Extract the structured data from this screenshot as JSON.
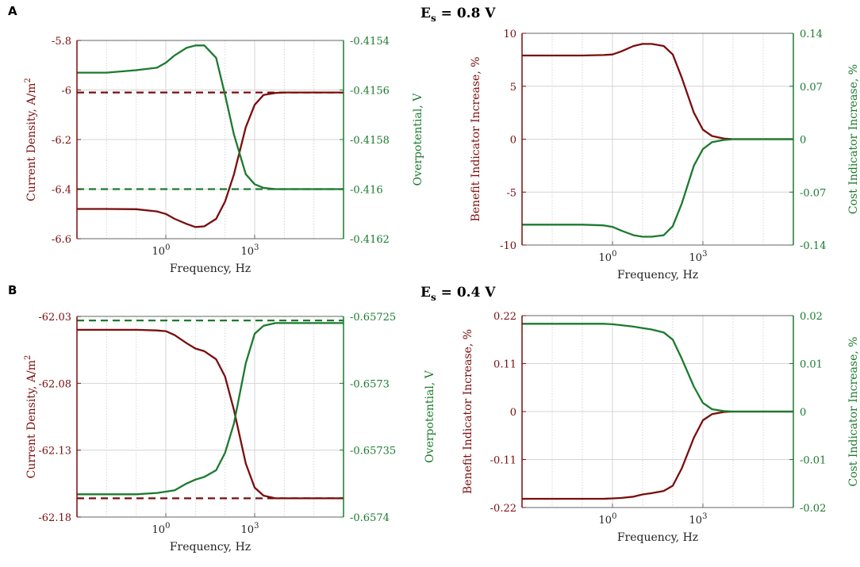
{
  "panels": [
    {
      "letter": "A",
      "title_main": "E",
      "title_sub": "s",
      "title_rest": " = 0.8 V"
    },
    {
      "letter": "B",
      "title_main": "E",
      "title_sub": "s",
      "title_rest": " = 0.4 V"
    }
  ],
  "colors": {
    "red": "#7a0d0d",
    "green": "#1b7a2e",
    "grid": "#d4d4d4",
    "frame": "#666666"
  },
  "chart_data": [
    {
      "type": "line",
      "panel": "A",
      "xlabel": "Frequency, Hz",
      "x_scale": "log",
      "xlim": [
        0.001,
        1000000
      ],
      "x_ticks": [
        {
          "value": 1,
          "base": "10",
          "exp": "0"
        },
        {
          "value": 1000,
          "base": "10",
          "exp": "3"
        }
      ],
      "ylabel_left": "Current Density, A/m",
      "ylabel_left_sup": "2",
      "ylim_left": [
        -6.6,
        -5.8
      ],
      "yticks_left": [
        "-5.8",
        "-6",
        "-6.2",
        "-6.4",
        "-6.6"
      ],
      "ylabel_right": "Overpotential, V",
      "ylim_right": [
        -0.4162,
        -0.4154
      ],
      "yticks_right": [
        "-0.4154",
        "-0.4156",
        "-0.4158",
        "-0.416",
        "-0.4162"
      ],
      "series": [
        {
          "axis": "left",
          "style": "solid",
          "color": "red",
          "x": [
            0.001,
            0.01,
            0.1,
            0.5,
            1,
            2,
            5,
            10,
            20,
            50,
            100,
            200,
            500,
            1000,
            2000,
            5000,
            10000,
            100000,
            1000000
          ],
          "y": [
            -6.48,
            -6.48,
            -6.481,
            -6.49,
            -6.5,
            -6.52,
            -6.54,
            -6.553,
            -6.55,
            -6.52,
            -6.45,
            -6.34,
            -6.15,
            -6.06,
            -6.02,
            -6.012,
            -6.01,
            -6.01,
            -6.01
          ]
        },
        {
          "axis": "left",
          "style": "dashed",
          "color": "red",
          "x": [
            0.001,
            1000000
          ],
          "y": [
            -6.01,
            -6.01
          ]
        },
        {
          "axis": "right",
          "style": "solid",
          "color": "green",
          "x": [
            0.001,
            0.01,
            0.1,
            0.5,
            1,
            2,
            5,
            10,
            20,
            50,
            100,
            200,
            500,
            1000,
            2000,
            5000,
            10000,
            100000,
            1000000
          ],
          "y": [
            -0.41553,
            -0.41553,
            -0.41552,
            -0.41551,
            -0.41549,
            -0.41546,
            -0.41543,
            -0.41542,
            -0.41542,
            -0.41547,
            -0.41562,
            -0.41578,
            -0.41594,
            -0.41598,
            -0.415995,
            -0.416,
            -0.416,
            -0.416,
            -0.416
          ]
        },
        {
          "axis": "right",
          "style": "dashed",
          "color": "green",
          "x": [
            0.001,
            1000000
          ],
          "y": [
            -0.416,
            -0.416
          ]
        }
      ]
    },
    {
      "type": "line",
      "panel": "A",
      "xlabel": "Frequency, Hz",
      "x_scale": "log",
      "xlim": [
        0.001,
        1000000
      ],
      "x_ticks": [
        {
          "value": 1,
          "base": "10",
          "exp": "0"
        },
        {
          "value": 1000,
          "base": "10",
          "exp": "3"
        }
      ],
      "ylabel_left": "Benefit Indicator Increase, %",
      "ylim_left": [
        -10,
        10
      ],
      "yticks_left": [
        "10",
        "5",
        "0",
        "-5",
        "-10"
      ],
      "ylabel_right": "Cost Indicator Increase, %",
      "ylim_right": [
        -0.14,
        0.14
      ],
      "yticks_right": [
        "0.14",
        "0.07",
        "0",
        "-0.07",
        "-0.14"
      ],
      "series": [
        {
          "axis": "left",
          "style": "solid",
          "color": "red",
          "x": [
            0.001,
            0.01,
            0.1,
            0.5,
            1,
            2,
            5,
            10,
            20,
            50,
            100,
            200,
            500,
            1000,
            2000,
            5000,
            10000,
            100000,
            1000000
          ],
          "y": [
            7.9,
            7.9,
            7.9,
            7.95,
            8.0,
            8.3,
            8.8,
            9.0,
            9.0,
            8.8,
            8.0,
            5.8,
            2.5,
            0.9,
            0.3,
            0.05,
            0,
            0,
            0
          ]
        },
        {
          "axis": "right",
          "style": "solid",
          "color": "green",
          "x": [
            0.001,
            0.01,
            0.1,
            0.5,
            1,
            2,
            5,
            10,
            20,
            50,
            100,
            200,
            500,
            1000,
            2000,
            5000,
            10000,
            100000,
            1000000
          ],
          "y": [
            -0.113,
            -0.113,
            -0.113,
            -0.114,
            -0.116,
            -0.121,
            -0.127,
            -0.129,
            -0.129,
            -0.127,
            -0.115,
            -0.085,
            -0.035,
            -0.013,
            -0.004,
            -0.001,
            0,
            0,
            0
          ]
        }
      ]
    },
    {
      "type": "line",
      "panel": "B",
      "xlabel": "Frequency, Hz",
      "x_scale": "log",
      "xlim": [
        0.001,
        1000000
      ],
      "x_ticks": [
        {
          "value": 1,
          "base": "10",
          "exp": "0"
        },
        {
          "value": 1000,
          "base": "10",
          "exp": "3"
        }
      ],
      "ylabel_left": "Current Density, A/m",
      "ylabel_left_sup": "2",
      "ylim_left": [
        -62.18,
        -62.03
      ],
      "yticks_left": [
        "-62.03",
        "-62.08",
        "-62.13",
        "-62.18"
      ],
      "ylabel_right": "Overpotential, V",
      "ylim_right": [
        -0.6574,
        -0.65725
      ],
      "yticks_right": [
        "-0.65725",
        "-0.6573",
        "-0.65735",
        "-0.6574"
      ],
      "series": [
        {
          "axis": "left",
          "style": "solid",
          "color": "red",
          "x": [
            0.001,
            0.01,
            0.1,
            0.5,
            1,
            2,
            5,
            10,
            20,
            50,
            100,
            200,
            500,
            1000,
            2000,
            5000,
            10000,
            100000,
            1000000
          ],
          "y": [
            -62.04,
            -62.04,
            -62.04,
            -62.0405,
            -62.041,
            -62.044,
            -62.05,
            -62.054,
            -62.056,
            -62.062,
            -62.075,
            -62.1,
            -62.14,
            -62.158,
            -62.164,
            -62.166,
            -62.166,
            -62.166,
            -62.166
          ]
        },
        {
          "axis": "left",
          "style": "dashed",
          "color": "red",
          "x": [
            0.001,
            1000000
          ],
          "y": [
            -62.166,
            -62.166
          ]
        },
        {
          "axis": "right",
          "style": "solid",
          "color": "green",
          "x": [
            0.001,
            0.01,
            0.1,
            0.5,
            1,
            2,
            5,
            10,
            20,
            50,
            100,
            200,
            500,
            1000,
            2000,
            5000,
            10000,
            100000,
            1000000
          ],
          "y": [
            -0.657383,
            -0.657383,
            -0.657383,
            -0.657382,
            -0.657381,
            -0.65738,
            -0.657375,
            -0.657372,
            -0.65737,
            -0.657365,
            -0.657352,
            -0.65733,
            -0.657285,
            -0.657263,
            -0.657257,
            -0.657255,
            -0.657255,
            -0.657255,
            -0.657255
          ]
        },
        {
          "axis": "right",
          "style": "dashed",
          "color": "green",
          "x": [
            0.001,
            1000000
          ],
          "y": [
            -0.657253,
            -0.657253
          ]
        }
      ]
    },
    {
      "type": "line",
      "panel": "B",
      "xlabel": "Frequency, Hz",
      "x_scale": "log",
      "xlim": [
        0.001,
        1000000
      ],
      "x_ticks": [
        {
          "value": 1,
          "base": "10",
          "exp": "0"
        },
        {
          "value": 1000,
          "base": "10",
          "exp": "3"
        }
      ],
      "ylabel_left": "Benefit Indicator Increase, %",
      "ylim_left": [
        -0.22,
        0.22
      ],
      "yticks_left": [
        "0.22",
        "0.11",
        "0",
        "-0.11",
        "-0.22"
      ],
      "ylabel_right": "Cost Indicator Increase, %",
      "ylim_right": [
        -0.02,
        0.02
      ],
      "yticks_right": [
        "0.02",
        "0.01",
        "0",
        "-0.01",
        "-0.02"
      ],
      "series": [
        {
          "axis": "left",
          "style": "solid",
          "color": "red",
          "x": [
            0.001,
            0.01,
            0.1,
            0.5,
            1,
            2,
            5,
            10,
            20,
            50,
            100,
            200,
            500,
            1000,
            2000,
            5000,
            10000,
            100000,
            1000000
          ],
          "y": [
            -0.2,
            -0.2,
            -0.2,
            -0.2,
            -0.199,
            -0.198,
            -0.195,
            -0.19,
            -0.187,
            -0.182,
            -0.17,
            -0.13,
            -0.06,
            -0.02,
            -0.006,
            -0.001,
            0,
            0,
            0
          ]
        },
        {
          "axis": "right",
          "style": "solid",
          "color": "green",
          "x": [
            0.001,
            0.01,
            0.1,
            0.5,
            1,
            2,
            5,
            10,
            20,
            50,
            100,
            200,
            500,
            1000,
            2000,
            5000,
            10000,
            100000,
            1000000
          ],
          "y": [
            0.0183,
            0.0183,
            0.0183,
            0.0183,
            0.0182,
            0.018,
            0.0177,
            0.0174,
            0.0171,
            0.0165,
            0.015,
            0.011,
            0.0052,
            0.0018,
            0.0005,
            0.0001,
            0,
            0,
            0
          ]
        }
      ]
    }
  ]
}
